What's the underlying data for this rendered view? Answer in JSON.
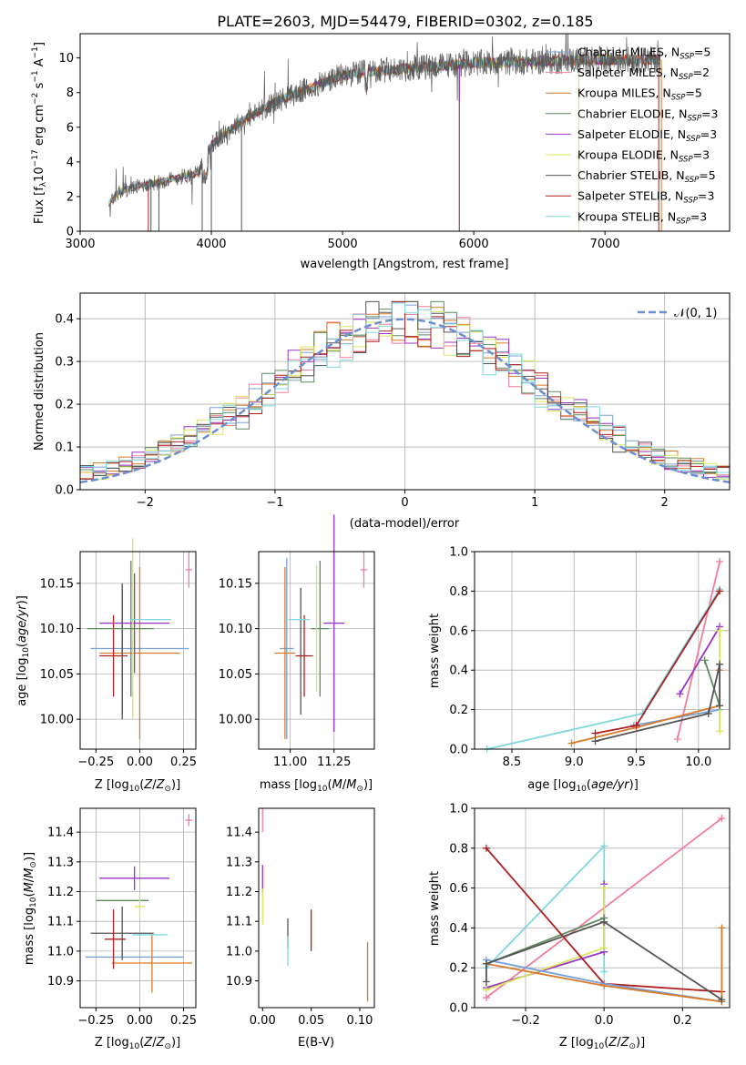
{
  "title": "PLATE=2603, MJD=54479, FIBERID=0302, z=0.185",
  "colors": {
    "chabrier_miles": "#7aa0d8",
    "salpeter_miles": "#f27f9a",
    "kroupa_miles": "#d97b2a",
    "chabrier_elodie": "#5e8a5e",
    "salpeter_elodie": "#9a33c4",
    "kroupa_elodie": "#d8e65a",
    "chabrier_stelib": "#555555",
    "salpeter_stelib": "#b01e1e",
    "kroupa_stelib": "#7fd8df",
    "normal": "#6a8fd0",
    "kroupa_z": "#e98cc0"
  },
  "chart_data": [
    {
      "type": "line",
      "panel": "spectrum",
      "xlabel": "wavelength [Angstrom, rest frame]",
      "ylabel": "Flux [f_λ 10^-17 erg cm^-2 s^-1 A^-1]",
      "xlim": [
        3000,
        7950
      ],
      "ylim": [
        0,
        11.4
      ],
      "xticks": [
        3000,
        4000,
        5000,
        6000,
        7000
      ],
      "yticks": [
        0,
        2,
        4,
        6,
        8,
        10
      ],
      "legend_position": "top-right",
      "series": [
        {
          "name": "Chabrier MILES, N_SSP=5"
        },
        {
          "name": "Salpeter MILES, N_SSP=2"
        },
        {
          "name": "Kroupa MILES, N_SSP=5"
        },
        {
          "name": "Chabrier ELODIE, N_SSP=3"
        },
        {
          "name": "Salpeter ELODIE, N_SSP=3"
        },
        {
          "name": "Kroupa ELODIE, N_SSP=3"
        },
        {
          "name": "Chabrier STELIB, N_SSP=5"
        },
        {
          "name": "Salpeter STELIB, N_SSP=3"
        },
        {
          "name": "Kroupa STELIB, N_SSP=3"
        }
      ],
      "approx_continuum": [
        [
          3220,
          1.6
        ],
        [
          3300,
          2.3
        ],
        [
          3500,
          2.7
        ],
        [
          3700,
          3.0
        ],
        [
          3900,
          3.4
        ],
        [
          4000,
          5.0
        ],
        [
          4200,
          6.2
        ],
        [
          4500,
          7.5
        ],
        [
          4800,
          8.4
        ],
        [
          5000,
          9.0
        ],
        [
          5200,
          9.2
        ],
        [
          5500,
          9.4
        ],
        [
          6000,
          9.7
        ],
        [
          6500,
          9.8
        ],
        [
          7000,
          9.9
        ],
        [
          7400,
          9.9
        ]
      ]
    },
    {
      "type": "histogram",
      "panel": "residuals",
      "xlabel": "(data-model)/error",
      "ylabel": "Normed distribution",
      "xlim": [
        -2.5,
        2.5
      ],
      "ylim": [
        0,
        0.46
      ],
      "xticks": [
        -2,
        -1,
        0,
        1,
        2
      ],
      "yticks": [
        0.0,
        0.1,
        0.2,
        0.3,
        0.4
      ],
      "legend": "𝒩(0, 1)",
      "legend_position": "top-right",
      "grid": true
    },
    {
      "type": "scatter",
      "panel": "age-vs-Z",
      "xlabel": "Z [log10(Z/Z⊙)]",
      "ylabel": "age  [log10(age/yr)]",
      "xticks": [
        -0.25,
        0.0,
        0.25
      ],
      "yticks": [
        10.0,
        10.05,
        10.1,
        10.15
      ],
      "xlim": [
        -0.34,
        0.32
      ],
      "ylim": [
        9.967,
        10.185
      ],
      "grid": true
    },
    {
      "type": "scatter",
      "panel": "age-vs-mass",
      "xlabel": "mass [log10(M/M⊙)]",
      "xticks": [
        11.0,
        11.25
      ],
      "yticks": [
        10.0,
        10.05,
        10.1,
        10.15
      ],
      "xlim": [
        10.82,
        11.48
      ],
      "ylim": [
        9.967,
        10.185
      ],
      "grid": true
    },
    {
      "type": "line",
      "panel": "mass-weight-vs-age",
      "xlabel": "age  [log10(age/yr)]",
      "ylabel": "mass weight",
      "xticks": [
        8.5,
        9.0,
        9.5,
        10.0
      ],
      "yticks": [
        0.0,
        0.2,
        0.4,
        0.6,
        0.8,
        1.0
      ],
      "xlim": [
        8.2,
        10.25
      ],
      "ylim": [
        0,
        1
      ],
      "grid": true
    },
    {
      "type": "scatter",
      "panel": "mass-vs-Z",
      "xlabel": "Z [log10(Z/Z⊙)]",
      "ylabel": "mass [log10(M/M⊙)]",
      "xticks": [
        -0.25,
        0.0,
        0.25
      ],
      "yticks": [
        10.9,
        11.0,
        11.1,
        11.2,
        11.3,
        11.4
      ],
      "xlim": [
        -0.34,
        0.32
      ],
      "ylim": [
        10.81,
        11.48
      ],
      "grid": true
    },
    {
      "type": "scatter",
      "panel": "mass-vs-EBV",
      "xlabel": "E(B-V)",
      "xticks": [
        0.0,
        0.05,
        0.1
      ],
      "yticks": [
        10.9,
        11.0,
        11.1,
        11.2,
        11.3,
        11.4
      ],
      "xlim": [
        -0.004,
        0.115
      ],
      "ylim": [
        10.81,
        11.48
      ],
      "grid": false
    },
    {
      "type": "line",
      "panel": "mass-weight-vs-Z",
      "xlabel": "Z [log10(Z/Z⊙)]",
      "ylabel": "mass weight",
      "xticks": [
        -0.2,
        0.0,
        0.2
      ],
      "yticks": [
        0.0,
        0.2,
        0.4,
        0.6,
        0.8,
        1.0
      ],
      "xlim": [
        -0.33,
        0.32
      ],
      "ylim": [
        0,
        1
      ],
      "grid": true
    }
  ]
}
